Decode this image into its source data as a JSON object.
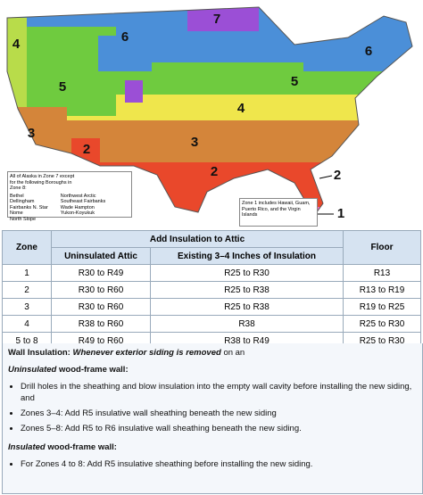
{
  "map": {
    "zone_labels": [
      "7",
      "6",
      "4",
      "6",
      "5",
      "5",
      "4",
      "3",
      "3",
      "2",
      "2",
      "2",
      "1"
    ],
    "alaska_note": {
      "text": "All of Alaska in Zone 7 except for the following Boroughs in Zone 8:",
      "col1": [
        "Bethel",
        "Dellingham",
        "Fairbanks N. Star",
        "Nome",
        "North Slope"
      ],
      "col2": [
        "Northwest Arctic",
        "Southeast Fairbanks",
        "Wade Hampton",
        "Yukon-Koyukuk"
      ]
    },
    "zone1_note": "Zone 1 includes Hawaii, Guam, Puerto Rico, and the Virgin Islands"
  },
  "table": {
    "zone_header": "Zone",
    "attic_header": "Add Insulation to Attic",
    "floor_header": "Floor",
    "sub_headers": [
      "Uninsulated Attic",
      "Existing 3–4 Inches of Insulation"
    ],
    "rows": [
      [
        "1",
        "R30 to R49",
        "R25 to R30",
        "R13"
      ],
      [
        "2",
        "R30 to R60",
        "R25 to R38",
        "R13 to R19"
      ],
      [
        "3",
        "R30 to R60",
        "R25 to R38",
        "R19 to R25"
      ],
      [
        "4",
        "R38 to R60",
        "R38",
        "R25 to R30"
      ],
      [
        "5 to 8",
        "R49 to R60",
        "R38 to R49",
        "R25 to R30"
      ]
    ]
  },
  "wall": {
    "heading": [
      "Wall Insulation:",
      "Whenever exterior siding is removed",
      "on an"
    ],
    "uninsulated_title": [
      "Uninsulated",
      "wood-frame wall:"
    ],
    "uninsulated_bullets": [
      "Drill holes in the sheathing and blow insulation into the empty wall cavity before installing the new siding, and",
      "Zones 3–4: Add R5 insulative wall sheathing beneath the new siding",
      "Zones 5–8: Add R5 to R6 insulative wall sheathing beneath the new siding."
    ],
    "insulated_title": [
      "Insulated",
      "wood-frame wall:"
    ],
    "insulated_bullets": [
      "For Zones 4 to 8: Add R5 insulative sheathing before installing the new siding."
    ]
  }
}
